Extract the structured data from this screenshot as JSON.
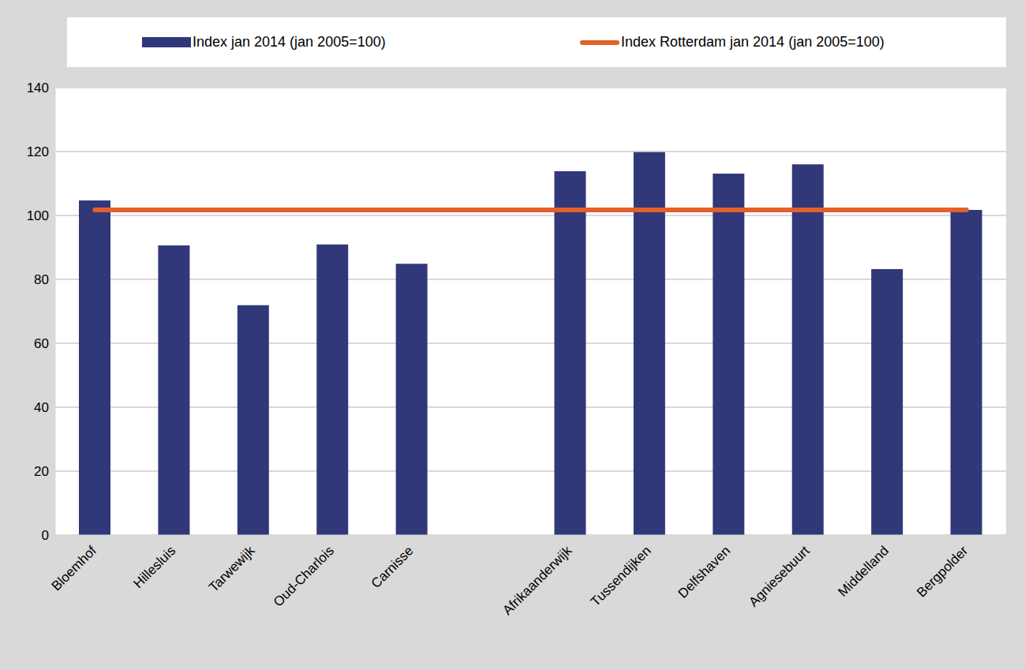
{
  "chart_data": {
    "type": "bar",
    "categories": [
      "Bloemhof",
      "Hillesluis",
      "Tarwewijk",
      "Oud-Charlois",
      "Carnisse",
      null,
      "Afrikaanderwijk",
      "Tussendijken",
      "Delfshaven",
      "Agniesebuurt",
      "Middelland",
      "Bergpolder"
    ],
    "series": [
      {
        "name": "Index jan 2014 (jan 2005=100)",
        "color": "#313879",
        "type": "bar",
        "values": [
          104.7,
          90.6,
          71.9,
          90.9,
          84.9,
          null,
          113.8,
          119.8,
          113.1,
          116.0,
          83.2,
          101.7
        ]
      },
      {
        "name": "Index Rotterdam jan 2014 (jan 2005=100)",
        "color": "#e4602a",
        "type": "line",
        "values": [
          101.7,
          101.7,
          101.7,
          101.7,
          101.7,
          101.7,
          101.7,
          101.7,
          101.7,
          101.7,
          101.7,
          101.7
        ]
      }
    ],
    "ylim": [
      0,
      140
    ],
    "yticks": [
      0,
      20,
      40,
      60,
      80,
      100,
      120,
      140
    ],
    "grid": true,
    "legend": "top"
  }
}
